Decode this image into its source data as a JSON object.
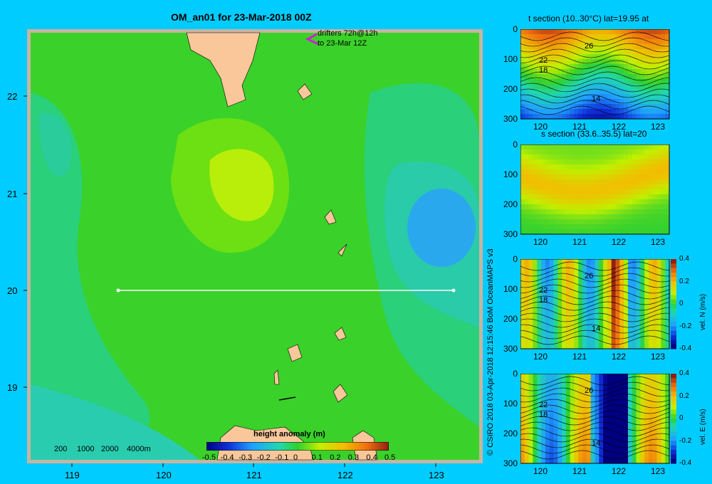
{
  "title": "OM_an01 for 23-Mar-2018 00Z",
  "drifters": {
    "line1": "drifters 72h@12h",
    "line2": "to 23-Mar 12Z"
  },
  "depth_legend": [
    "200",
    "1000",
    "2000",
    "4000m"
  ],
  "colorbar": {
    "label": "height anomaly (m)",
    "ticks": [
      "-0.5",
      "-0.4",
      "-0.3",
      "-0.2",
      "-0.1",
      "0",
      "0.1",
      "0.2",
      "0.3",
      "0.4",
      "0.5"
    ]
  },
  "credit": "© CSIRO 2018   03-Apr-2018 12:15:46 BoM OceanMAPS v3",
  "chart_data": [
    {
      "type": "heatmap",
      "name": "map",
      "title": "OM_an01 for 23-Mar-2018 00Z",
      "xlim": [
        118.5,
        123.5
      ],
      "ylim": [
        18.3,
        22.7
      ],
      "x_ticks": [
        "119",
        "120",
        "121",
        "122",
        "123"
      ],
      "y_ticks": [
        "19",
        "20",
        "21",
        "22"
      ],
      "colorbar_range": [
        -0.5,
        0.5
      ],
      "section_line": {
        "lon": [
          119.5,
          123.2
        ],
        "lat": [
          20,
          20
        ]
      }
    },
    {
      "type": "heatmap",
      "name": "t-section",
      "title": "t section (10..30°C) lat=19.95 at",
      "x_ticks": [
        "120",
        "121",
        "122",
        "123"
      ],
      "y_ticks": [
        "0",
        "100",
        "200",
        "300"
      ],
      "contour_labels": [
        "26",
        "22",
        "18",
        "14"
      ]
    },
    {
      "type": "heatmap",
      "name": "s-section",
      "title": "s section (33.6..35.5) lat=20",
      "x_ticks": [
        "120",
        "121",
        "122",
        "123"
      ],
      "y_ticks": [
        "0",
        "100",
        "200",
        "300"
      ]
    },
    {
      "type": "heatmap",
      "name": "vel-n-section",
      "title": "",
      "x_ticks": [
        "120",
        "121",
        "122",
        "123"
      ],
      "y_ticks": [
        "0",
        "100",
        "200",
        "300"
      ],
      "contour_labels": [
        "26",
        "22",
        "18",
        "14"
      ],
      "colorbar": {
        "label": "vel. N (m/s)",
        "ticks": [
          "0.4",
          "0.2",
          "0",
          "-0.2",
          "-0.4"
        ]
      }
    },
    {
      "type": "heatmap",
      "name": "vel-e-section",
      "title": "",
      "x_ticks": [
        "120",
        "121",
        "122",
        "123"
      ],
      "y_ticks": [
        "0",
        "100",
        "200",
        "300"
      ],
      "contour_labels": [
        "26",
        "22",
        "18",
        "14"
      ],
      "colorbar": {
        "label": "vel. E (m/s)",
        "ticks": [
          "0.4",
          "0.2",
          "0",
          "-0.2",
          "-0.4"
        ]
      }
    }
  ],
  "colors": {
    "background": "#00ccff",
    "land": "#f9c79a",
    "map_green": "#3ad12a",
    "section_line": "#ffffff"
  }
}
